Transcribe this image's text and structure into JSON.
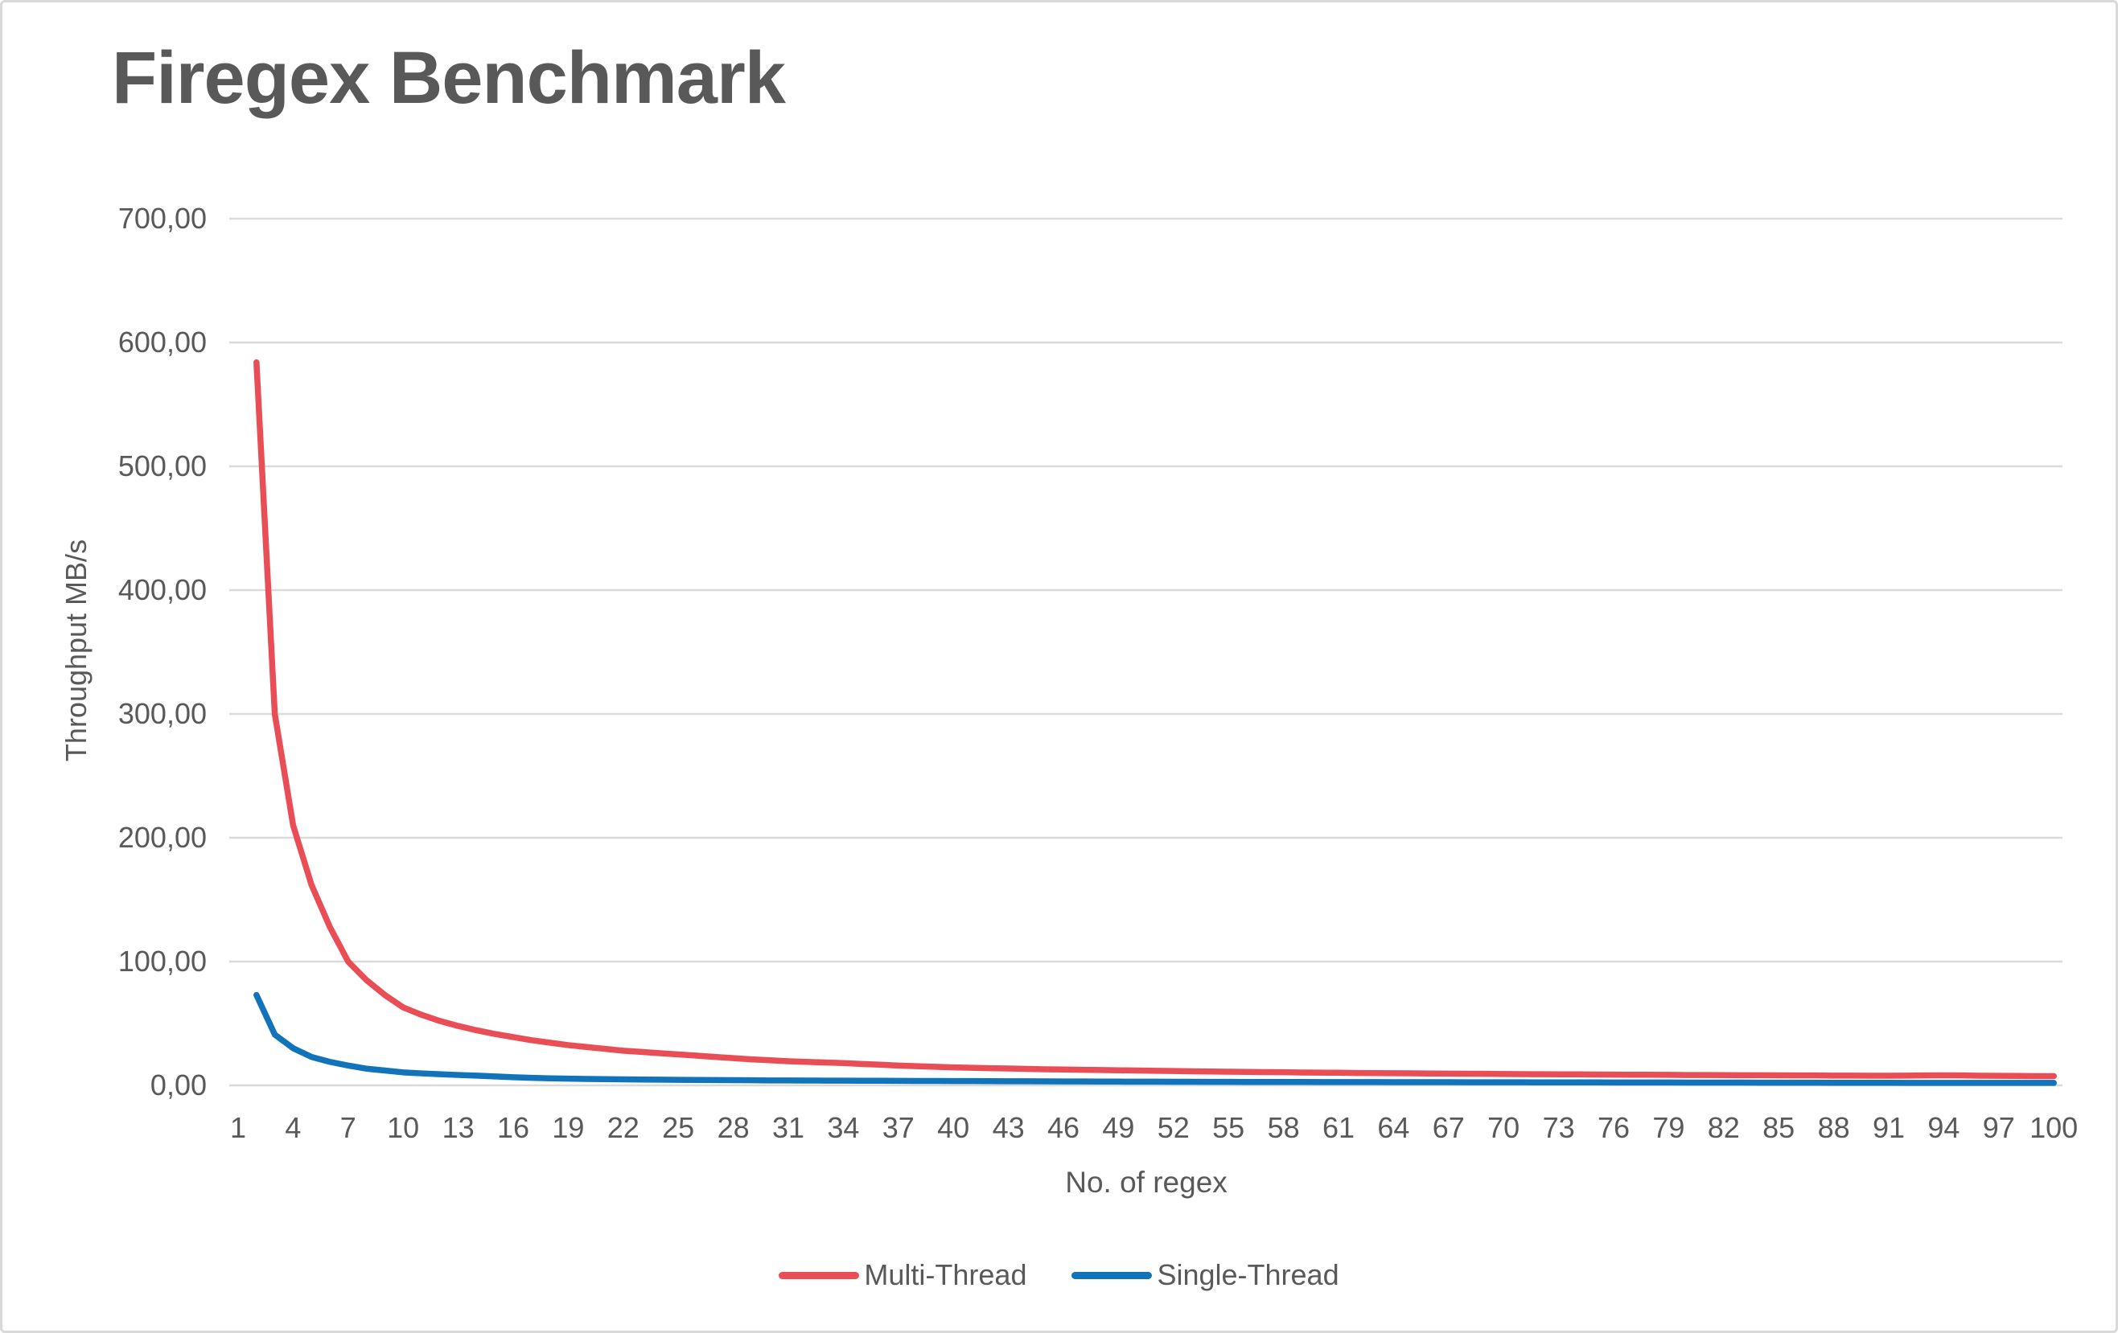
{
  "styles": {
    "background": "#FFFFFF",
    "border_color": "#D9D9D9",
    "text_color": "#595959",
    "grid_color": "#DADADA",
    "multi_thread_color": "#E94D55",
    "single_thread_color": "#1173B9"
  },
  "chart_data": {
    "type": "line",
    "title": "Firegex Benchmark",
    "xlabel": "No. of regex",
    "ylabel": "Throughput MB/s",
    "ylim": [
      0,
      700
    ],
    "grid": "horizontal-only",
    "legend_position": "bottom",
    "y_ticks": [
      {
        "value": 0,
        "label": "0,00"
      },
      {
        "value": 100,
        "label": "100,00"
      },
      {
        "value": 200,
        "label": "200,00"
      },
      {
        "value": 300,
        "label": "300,00"
      },
      {
        "value": 400,
        "label": "400,00"
      },
      {
        "value": 500,
        "label": "500,00"
      },
      {
        "value": 600,
        "label": "600,00"
      },
      {
        "value": 700,
        "label": "700,00"
      }
    ],
    "x_tick_labels": [
      1,
      4,
      7,
      10,
      13,
      16,
      19,
      22,
      25,
      28,
      31,
      34,
      37,
      40,
      43,
      46,
      49,
      52,
      55,
      58,
      61,
      64,
      67,
      70,
      73,
      76,
      79,
      82,
      85,
      88,
      91,
      94,
      97,
      100
    ],
    "x_values": [
      2,
      3,
      4,
      5,
      6,
      7,
      8,
      9,
      10,
      11,
      12,
      13,
      14,
      15,
      16,
      17,
      18,
      19,
      20,
      21,
      22,
      23,
      24,
      25,
      26,
      27,
      28,
      29,
      30,
      31,
      32,
      33,
      34,
      35,
      36,
      37,
      38,
      39,
      40,
      41,
      42,
      43,
      44,
      45,
      46,
      47,
      48,
      49,
      50,
      51,
      52,
      53,
      54,
      55,
      56,
      57,
      58,
      59,
      60,
      61,
      62,
      63,
      64,
      65,
      66,
      67,
      68,
      69,
      70,
      71,
      72,
      73,
      74,
      75,
      76,
      77,
      78,
      79,
      80,
      81,
      82,
      83,
      84,
      85,
      86,
      87,
      88,
      89,
      90,
      91,
      92,
      93,
      94,
      95,
      96,
      97,
      98,
      99,
      100
    ],
    "series": [
      {
        "name": "Multi-Thread",
        "color": "#E94D55",
        "values": [
          584,
          300,
          210,
          162,
          128,
          100,
          85,
          73,
          63,
          57,
          52,
          48,
          44.5,
          41.5,
          39,
          36.5,
          34.5,
          32.5,
          31,
          29.5,
          28,
          27,
          26,
          25,
          24,
          23,
          22,
          21,
          20.3,
          19.5,
          19,
          18.5,
          18,
          17.3,
          16.7,
          16,
          15.5,
          15,
          14.5,
          14.2,
          13.9,
          13.6,
          13.3,
          13,
          12.8,
          12.6,
          12.4,
          12.2,
          12,
          11.8,
          11.6,
          11.4,
          11.2,
          11,
          10.9,
          10.7,
          10.6,
          10.4,
          10.3,
          10.2,
          10,
          9.9,
          9.8,
          9.7,
          9.6,
          9.5,
          9.4,
          9.3,
          9.2,
          9.1,
          9,
          8.9,
          8.9,
          8.8,
          8.7,
          8.6,
          8.6,
          8.5,
          8.4,
          8.4,
          8.3,
          8.2,
          8.2,
          8.1,
          8,
          8,
          7.9,
          7.9,
          7.8,
          7.8,
          7.9,
          8,
          8.1,
          8,
          7.8,
          7.7,
          7.6,
          7.5,
          7.5
        ]
      },
      {
        "name": "Single-Thread",
        "color": "#1173B9",
        "values": [
          73,
          41,
          30,
          23,
          19,
          16,
          13.5,
          12,
          10.5,
          9.7,
          9,
          8.4,
          7.9,
          7.2,
          6.6,
          6.1,
          5.7,
          5.4,
          5.2,
          5,
          4.9,
          4.7,
          4.6,
          4.5,
          4.4,
          4.3,
          4.2,
          4.1,
          4,
          3.95,
          3.9,
          3.85,
          3.8,
          3.75,
          3.7,
          3.65,
          3.6,
          3.55,
          3.5,
          3.45,
          3.4,
          3.35,
          3.3,
          3.25,
          3.2,
          3.15,
          3.1,
          3.05,
          3,
          2.97,
          2.94,
          2.9,
          2.87,
          2.84,
          2.8,
          2.77,
          2.74,
          2.72,
          2.7,
          2.68,
          2.66,
          2.64,
          2.62,
          2.6,
          2.58,
          2.56,
          2.54,
          2.52,
          2.5,
          2.48,
          2.46,
          2.44,
          2.42,
          2.4,
          2.38,
          2.36,
          2.34,
          2.32,
          2.3,
          2.28,
          2.26,
          2.24,
          2.22,
          2.2,
          2.18,
          2.16,
          2.14,
          2.12,
          2.1,
          2.08,
          2.06,
          2.05,
          2.04,
          2.03,
          2.02,
          2.01,
          2,
          2,
          2
        ]
      }
    ]
  }
}
